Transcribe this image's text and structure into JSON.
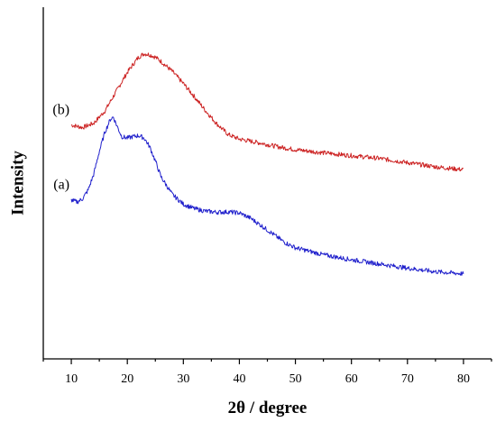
{
  "chart_data": {
    "type": "line",
    "title": "",
    "xlabel": "2θ / degree",
    "ylabel": "Intensity",
    "xlim": [
      5,
      85
    ],
    "ylim": [
      0,
      100
    ],
    "xticks": [
      10,
      20,
      30,
      40,
      50,
      60,
      70,
      80
    ],
    "grid": false,
    "y_tick_labels_shown": false,
    "series": [
      {
        "name": "(b)",
        "color": "#cc2222",
        "x": [
          10,
          12,
          14,
          16,
          18,
          20,
          22,
          23,
          24,
          25,
          26,
          28,
          30,
          32,
          34,
          36,
          38,
          40,
          42,
          44,
          46,
          48,
          50,
          55,
          60,
          65,
          70,
          75,
          80
        ],
        "y": [
          66.5,
          65.8,
          67.0,
          70.5,
          76.0,
          81.5,
          85.8,
          86.8,
          86.5,
          85.8,
          84.6,
          81.8,
          78.3,
          74.5,
          70.5,
          66.8,
          63.8,
          62.5,
          61.9,
          61.3,
          60.6,
          60.0,
          59.5,
          58.6,
          57.8,
          57.0,
          55.8,
          54.6,
          53.8
        ]
      },
      {
        "name": "(a)",
        "color": "#2020cc",
        "x": [
          10,
          11,
          12,
          13,
          14,
          15,
          16,
          17,
          17.5,
          18,
          19,
          20,
          21,
          22,
          23,
          24,
          25,
          26,
          28,
          30,
          32,
          34,
          36,
          38,
          40,
          42,
          44,
          46,
          48,
          50,
          55,
          60,
          65,
          70,
          75,
          80
        ],
        "y": [
          45.2,
          44.6,
          45.5,
          48.0,
          52.5,
          59.0,
          64.5,
          68.2,
          68.8,
          66.8,
          63.2,
          62.8,
          63.2,
          63.5,
          62.8,
          60.3,
          56.3,
          51.8,
          46.8,
          44.0,
          42.7,
          42.0,
          41.7,
          41.8,
          41.5,
          40.0,
          37.8,
          35.5,
          33.2,
          31.6,
          29.6,
          28.2,
          27.0,
          25.8,
          24.8,
          24.2
        ]
      }
    ]
  }
}
